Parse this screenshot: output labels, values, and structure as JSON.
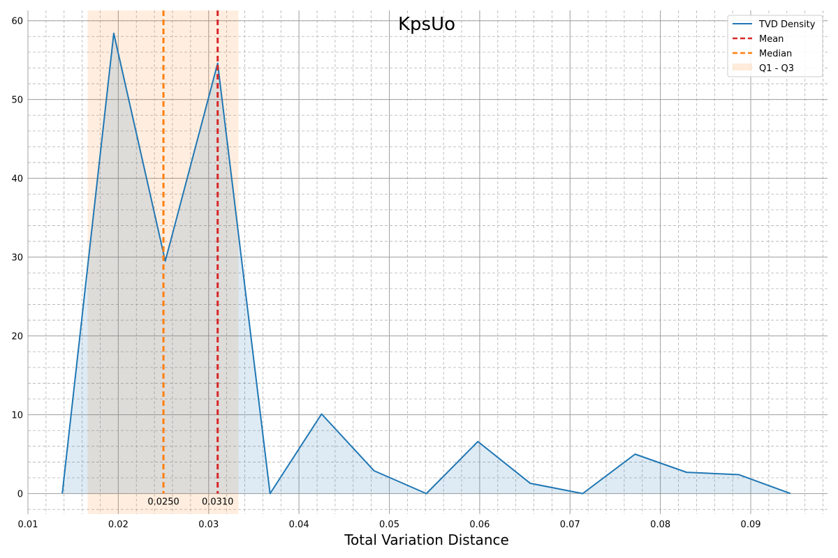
{
  "chart_data": {
    "type": "area",
    "title": "KpsUo",
    "xlabel": "Total Variation Distance",
    "ylabel": "",
    "xlim": [
      0.01,
      0.0985
    ],
    "ylim": [
      -2.6,
      61.3
    ],
    "x_ticks": [
      0.01,
      0.02,
      0.03,
      0.04,
      0.05,
      0.06,
      0.07,
      0.08,
      0.09
    ],
    "x_tick_labels": [
      "0.01",
      "0.02",
      "0.03",
      "0.04",
      "0.05",
      "0.06",
      "0.07",
      "0.08",
      "0.09"
    ],
    "y_ticks": [
      0,
      10,
      20,
      30,
      40,
      50,
      60
    ],
    "y_tick_labels": [
      "0",
      "10",
      "20",
      "30",
      "40",
      "50",
      "60"
    ],
    "grid": true,
    "minor_grid": true,
    "legend_position": "top-right",
    "series": [
      {
        "name": "TVD Density",
        "color": "#1f77b4",
        "x": [
          0.0138,
          0.0195,
          0.0252,
          0.031,
          0.0368,
          0.0425,
          0.0483,
          0.0541,
          0.0598,
          0.0656,
          0.0714,
          0.0772,
          0.0829,
          0.0887,
          0.0944
        ],
        "y": [
          0,
          58.4,
          29.5,
          54.6,
          0,
          10.1,
          2.9,
          0,
          6.6,
          1.3,
          0,
          5.0,
          2.7,
          2.4,
          0
        ]
      }
    ],
    "mean": {
      "name": "Mean",
      "value": 0.031,
      "label": "0.0310",
      "color": "#d62728"
    },
    "median": {
      "name": "Median",
      "value": 0.025,
      "label": "0.0250",
      "color": "#ff7f0e"
    },
    "iqr": {
      "name": "Q1 - Q3",
      "q1": 0.0166,
      "q3": 0.0333,
      "color": "#ff7f0e"
    }
  }
}
